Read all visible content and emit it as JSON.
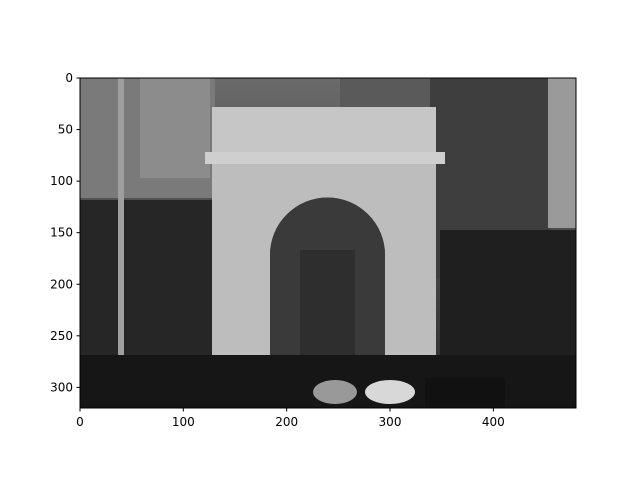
{
  "chart_data": {
    "type": "image",
    "xlim": [
      0,
      480
    ],
    "xticks": [
      0,
      100,
      200,
      300,
      400
    ],
    "ylim": [
      320,
      0
    ],
    "yticks": [
      0,
      50,
      100,
      150,
      200,
      250,
      300
    ]
  }
}
